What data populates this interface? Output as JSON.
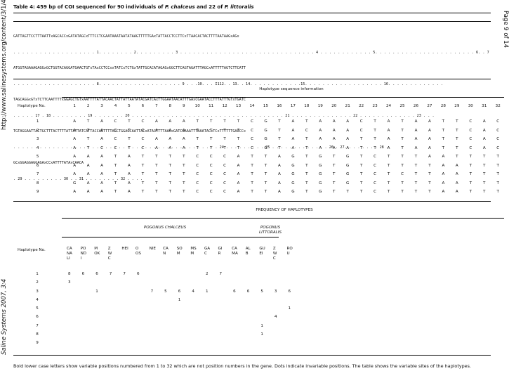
{
  "side": {
    "left_url": "http://www.salinesystems.org/content/3/1/4",
    "left_journal": "Saline Systems 2007, 3:4",
    "right_page": "Page 9 of 14"
  },
  "title": {
    "prefix": "Table 4: 459 bp of COI sequenced for 90 individuals of ",
    "species1": "P. chalceus",
    "mid": " and 22 of ",
    "species2": "P. littoralis"
  },
  "sequence_lines": [
    "GATTAGTTCCTTTAATTxAGCACCxGATATAGCxTTTCCTCGAATAAATAATATAAGTTTTTGAxTATTACCTCCTTCxTTAACACTACTTTTAATAAGxAGx",
    ". . . . . . . . . . . . . . . . . . . 1. . . . . . . . 2. . . . . . . . . 3 . . . . . . . . . . . . . . . . . . . . . . . . . . . . . . . 4 . . . . . . . . . . . . 5. . . . . . . . . . . . . . . . . . . . . . . 6. . 7",
    "ATGGTAGAAAGAGGxGCTGGTACAGGATGAACTGTxTAxCCTCCxxTATCxTCTGxTATTGCACATAGAGxGGCTTCAGTAGATTTAGCxATTTTTAGTCTTCATT",
    ". . . . . . . . . . . . . . . . . . . 8. . . . . . . . . . . . . . . . . . . 9 . . .10. . . I112. . 13. . 14. . . . . . . . . . . .15. . . . . . . . . . . . . . . . . . 16. . . . . . . . . . . . .",
    "TAGCAGGxGTxTCTTCAATTTTxGGAGCTGTxAATTTTATTACAACTATTATTAATATACGATCAxTTGGAATAACATTTGAxCGAATACCTTTATTTGTxTGATC",
    ". . . . . 17 . 18 . . . . . . . . 19 . . . . . . . 20 . . . . . . . . . . . . . . . . . . . . . . . . . . . . . . . . . . . 21 . . . . . . . . . . . . . . 22 . . . . . . . . . . . . . 23 . . .",
    "TGTAGGAATTACTGCTTTACTTTTATTATTATCATTACCAGTTTTAGCTGGAGCAATTACxATACTTTTAACxGATCGAAATTTAAATACxTCxTTTTTTGACCCx",
    ". . . . . . . . . . . . . . . . . . . . . . . . . . . . . . . . . . . . . . . . . . . . . . . 24 . . . . . . . . . 25 . . . . . . . . . . . . . 26 . 27. . . . . . . . 28 .",
    "GCxGGAGGAGGAGAxCCxATTTTATAxCAACA",
    ". 29 . . . . . . . . . 30 . . 31 . . . . . . . . 32 . . . ."
  ],
  "section1": {
    "heading": "Haplotype sequence information",
    "row_header": "Haplotype No.",
    "positions": [
      "1",
      "2",
      "3",
      "4",
      "5",
      "6",
      "7",
      "8",
      "9",
      "10",
      "11",
      "12",
      "13",
      "14",
      "15",
      "16",
      "17",
      "18",
      "19",
      "20",
      "21",
      "22",
      "23",
      "24",
      "25",
      "26",
      "27",
      "28",
      "29",
      "30",
      "31",
      "32"
    ],
    "rows": [
      {
        "n": "1",
        "b": [
          "A",
          "T",
          "A",
          "C",
          "T",
          "C",
          "A",
          "A",
          "A",
          "T",
          "T",
          "T",
          "T",
          "C",
          "G",
          "T",
          "A",
          "T",
          "A",
          "A",
          "A",
          "C",
          "T",
          "A",
          "T",
          "A",
          "A",
          "T",
          "T",
          "C",
          "A",
          "C"
        ]
      },
      {
        "n": "2",
        "b": [
          "A",
          "T",
          "A",
          "C",
          "T",
          "C",
          "A",
          "A",
          "A",
          "T",
          "T",
          "T",
          "T",
          "C",
          "G",
          "T",
          "A",
          "C",
          "A",
          "A",
          "A",
          "C",
          "T",
          "A",
          "T",
          "A",
          "A",
          "T",
          "T",
          "C",
          "A",
          "C"
        ]
      },
      {
        "n": "3",
        "b": [
          "A",
          "T",
          "A",
          "C",
          "T",
          "C",
          "A",
          "A",
          "A",
          "T",
          "T",
          "T",
          "T",
          "C",
          "G",
          "T",
          "A",
          "T",
          "A",
          "A",
          "A",
          "T",
          "T",
          "A",
          "T",
          "A",
          "A",
          "T",
          "T",
          "C",
          "A",
          "C"
        ]
      },
      {
        "n": "4",
        "b": [
          "A",
          "T",
          "C",
          "C",
          "T",
          "C",
          "A",
          "A",
          "A",
          "T",
          "T",
          "T",
          "T",
          "C",
          "G",
          "T",
          "A",
          "T",
          "A",
          "A",
          "A",
          "T",
          "T",
          "A",
          "T",
          "A",
          "A",
          "T",
          "T",
          "C",
          "A",
          "C"
        ]
      },
      {
        "n": "5",
        "b": [
          "A",
          "A",
          "A",
          "T",
          "A",
          "T",
          "T",
          "T",
          "T",
          "C",
          "C",
          "C",
          "A",
          "T",
          "T",
          "A",
          "G",
          "T",
          "G",
          "T",
          "G",
          "T",
          "C",
          "T",
          "T",
          "T",
          "A",
          "A",
          "T",
          "T",
          "T",
          "T"
        ]
      },
      {
        "n": "6",
        "b": [
          "A",
          "A",
          "A",
          "T",
          "A",
          "T",
          "T",
          "T",
          "T",
          "C",
          "C",
          "C",
          "A",
          "T",
          "T",
          "A",
          "G",
          "T",
          "G",
          "T",
          "G",
          "T",
          "C",
          "T",
          "T",
          "T",
          "T",
          "A",
          "A",
          "T",
          "T",
          "T"
        ]
      },
      {
        "n": "7",
        "b": [
          "A",
          "A",
          "A",
          "T",
          "A",
          "T",
          "T",
          "T",
          "T",
          "C",
          "C",
          "C",
          "A",
          "T",
          "T",
          "A",
          "G",
          "T",
          "G",
          "T",
          "G",
          "T",
          "C",
          "T",
          "C",
          "T",
          "T",
          "A",
          "A",
          "T",
          "T",
          "T"
        ]
      },
      {
        "n": "8",
        "b": [
          "G",
          "A",
          "A",
          "T",
          "A",
          "T",
          "T",
          "T",
          "T",
          "C",
          "C",
          "C",
          "A",
          "T",
          "T",
          "A",
          "G",
          "T",
          "G",
          "T",
          "G",
          "T",
          "C",
          "T",
          "T",
          "T",
          "T",
          "A",
          "A",
          "T",
          "T",
          "T"
        ]
      },
      {
        "n": "9",
        "b": [
          "A",
          "A",
          "A",
          "T",
          "A",
          "T",
          "T",
          "T",
          "T",
          "C",
          "C",
          "C",
          "A",
          "T",
          "T",
          "A",
          "G",
          "T",
          "G",
          "T",
          "T",
          "T",
          "C",
          "T",
          "T",
          "T",
          "T",
          "A",
          "A",
          "T",
          "T",
          "T"
        ]
      }
    ]
  },
  "section2": {
    "heading": "FREQUENCY OF HAPLOTYPES",
    "group1": "POGONUS CHALCEUS",
    "group2_line1": "POGONUS",
    "group2_line2": "LITTORALIS",
    "row_header": "Haplotype No.",
    "columns": [
      [
        "CA",
        "NA",
        "LI"
      ],
      [
        "PO",
        "ND",
        "I"
      ],
      [
        "M",
        "OK",
        ""
      ],
      [
        "Z",
        "W",
        "C"
      ],
      [
        "HEI",
        "",
        ""
      ],
      [
        "O",
        "OS",
        ""
      ],
      [
        "NIE",
        "",
        ""
      ],
      [
        "CA",
        "N",
        ""
      ],
      [
        "SO",
        "M",
        ""
      ],
      [
        "MS",
        "M",
        ""
      ],
      [
        "GA",
        "C",
        ""
      ],
      [
        "GI",
        "R",
        ""
      ],
      [
        "CA",
        "MA",
        ""
      ],
      [
        "AL",
        "B",
        ""
      ],
      [
        "GU",
        "EI",
        ""
      ],
      [
        "Z",
        "W",
        "C"
      ],
      [
        "RO",
        "U",
        ""
      ]
    ],
    "rows": [
      {
        "n": "1",
        "v": [
          "8",
          "6",
          "6",
          "7",
          "7",
          "6",
          "",
          "",
          "",
          "",
          "2",
          "7",
          "",
          "",
          "",
          "",
          ""
        ]
      },
      {
        "n": "2",
        "v": [
          "3",
          "",
          "",
          "",
          "",
          "",
          "",
          "",
          "",
          "",
          "",
          "",
          "",
          "",
          "",
          "",
          ""
        ]
      },
      {
        "n": "3",
        "v": [
          "",
          "",
          "1",
          "",
          "",
          "",
          "7",
          "5",
          "6",
          "4",
          "1",
          "",
          "6",
          "6",
          "5",
          "3",
          "6"
        ]
      },
      {
        "n": "4",
        "v": [
          "",
          "",
          "",
          "",
          "",
          "",
          "",
          "",
          "1",
          "",
          "",
          "",
          "",
          "",
          "",
          "",
          ""
        ]
      },
      {
        "n": "5",
        "v": [
          "",
          "",
          "",
          "",
          "",
          "",
          "",
          "",
          "",
          "",
          "",
          "",
          "",
          "",
          "",
          "",
          "1"
        ]
      },
      {
        "n": "6",
        "v": [
          "",
          "",
          "",
          "",
          "",
          "",
          "",
          "",
          "",
          "",
          "",
          "",
          "",
          "",
          "",
          "4",
          ""
        ]
      },
      {
        "n": "7",
        "v": [
          "",
          "",
          "",
          "",
          "",
          "",
          "",
          "",
          "",
          "",
          "",
          "",
          "",
          "",
          "1",
          "",
          ""
        ]
      },
      {
        "n": "8",
        "v": [
          "",
          "",
          "",
          "",
          "",
          "",
          "",
          "",
          "",
          "",
          "",
          "",
          "",
          "",
          "1",
          "",
          ""
        ]
      },
      {
        "n": "9",
        "v": [
          "",
          "",
          "",
          "",
          "",
          "",
          "",
          "",
          "",
          "",
          "",
          "",
          "",
          "",
          "",
          "",
          ""
        ]
      }
    ]
  },
  "footnote": "Bold lower case letters show variable positions numbered from 1 to 32 which are not position numbers in the gene. Dots indicate invariable positions. The table shows the variable sites of the haplotypes."
}
